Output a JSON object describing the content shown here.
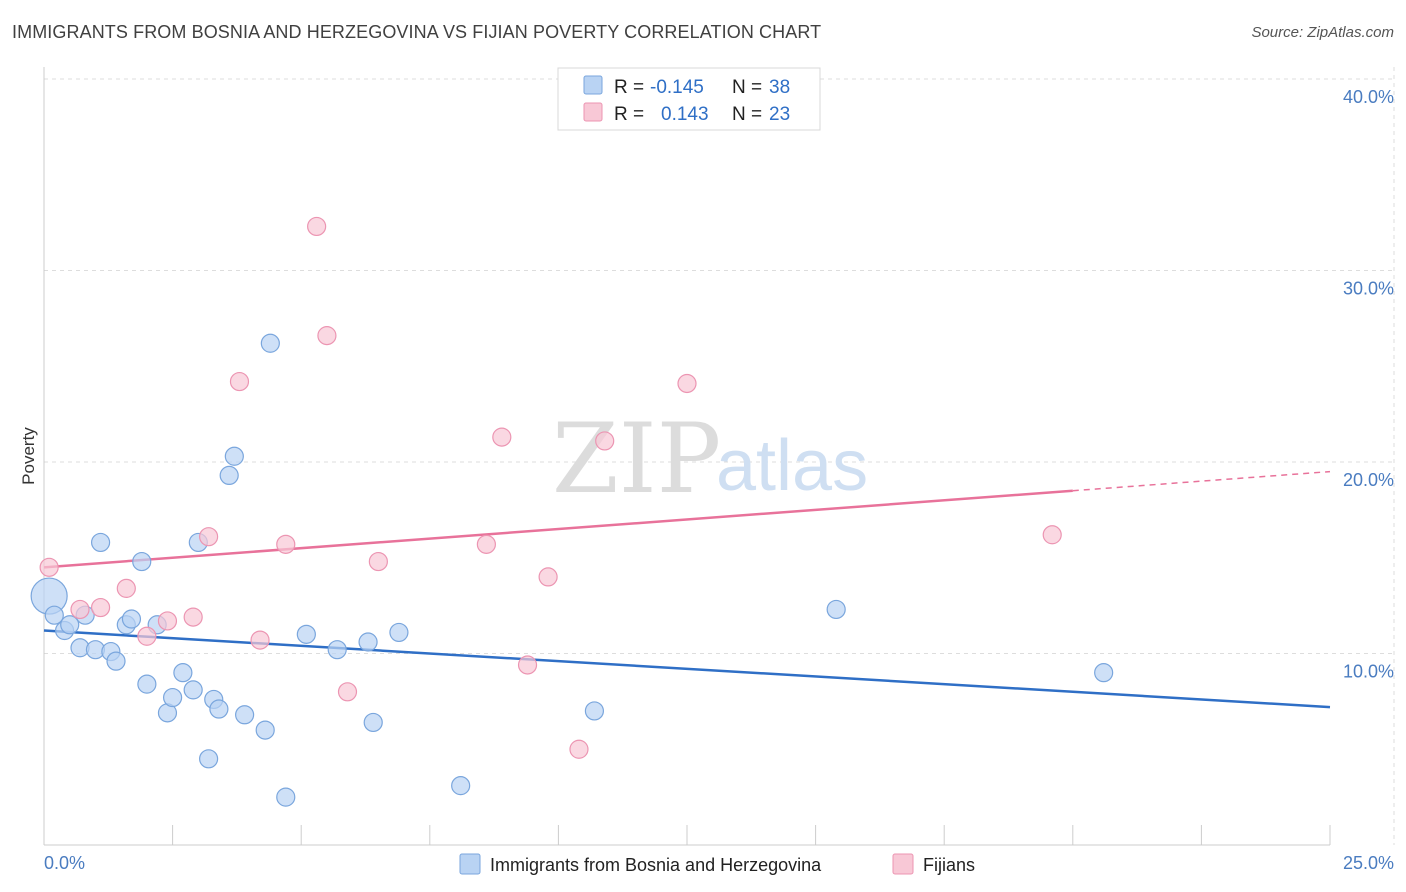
{
  "header": {
    "title": "IMMIGRANTS FROM BOSNIA AND HERZEGOVINA VS FIJIAN POVERTY CORRELATION CHART",
    "source": "Source: ZipAtlas.com"
  },
  "watermark": {
    "zip": "ZIP",
    "atlas": "atlas"
  },
  "colors": {
    "blue_fill": "#b9d3f3",
    "blue_stroke": "#7aa6dd",
    "blue_line": "#2f6fc6",
    "pink_fill": "#f8c8d6",
    "pink_stroke": "#ec95b2",
    "pink_line": "#e8729a",
    "grid": "#dddddd",
    "tick_label": "#4a7cc0"
  },
  "legend": {
    "rows": [
      {
        "r_label": "R =",
        "r_value": "-0.145",
        "n_label": "N =",
        "n_value": "38"
      },
      {
        "r_label": "R =",
        "r_value": "0.143",
        "n_label": "N =",
        "n_value": "23"
      }
    ]
  },
  "chart_data": {
    "type": "scatter",
    "title": "IMMIGRANTS FROM BOSNIA AND HERZEGOVINA VS FIJIAN POVERTY CORRELATION CHART",
    "xlabel": "",
    "ylabel": "Poverty",
    "xlim": [
      0,
      25
    ],
    "ylim": [
      0,
      40
    ],
    "x_tick_labels": [
      "0.0%",
      "25.0%"
    ],
    "y_ticks": [
      10,
      20,
      30,
      40
    ],
    "y_tick_labels": [
      "10.0%",
      "20.0%",
      "30.0%",
      "40.0%"
    ],
    "grid": true,
    "legend_position": "top-center",
    "series": [
      {
        "name": "Immigrants from Bosnia and Herzegovina",
        "color": "#b9d3f3",
        "r": -0.145,
        "n": 38,
        "trend": {
          "x": [
            0,
            25
          ],
          "y": [
            11.2,
            7.2
          ]
        },
        "points": [
          {
            "x": 0.1,
            "y": 13.0,
            "big": true
          },
          {
            "x": 0.2,
            "y": 12.0
          },
          {
            "x": 0.4,
            "y": 11.2
          },
          {
            "x": 0.5,
            "y": 11.5
          },
          {
            "x": 0.7,
            "y": 10.3
          },
          {
            "x": 0.8,
            "y": 12.0
          },
          {
            "x": 1.0,
            "y": 10.2
          },
          {
            "x": 1.1,
            "y": 15.8
          },
          {
            "x": 1.3,
            "y": 10.1
          },
          {
            "x": 1.4,
            "y": 9.6
          },
          {
            "x": 1.6,
            "y": 11.5
          },
          {
            "x": 1.7,
            "y": 11.8
          },
          {
            "x": 1.9,
            "y": 14.8
          },
          {
            "x": 2.0,
            "y": 8.4
          },
          {
            "x": 2.2,
            "y": 11.5
          },
          {
            "x": 2.4,
            "y": 6.9
          },
          {
            "x": 2.5,
            "y": 7.7
          },
          {
            "x": 2.7,
            "y": 9.0
          },
          {
            "x": 2.9,
            "y": 8.1
          },
          {
            "x": 3.0,
            "y": 15.8
          },
          {
            "x": 3.2,
            "y": 4.5
          },
          {
            "x": 3.3,
            "y": 7.6
          },
          {
            "x": 3.4,
            "y": 7.1
          },
          {
            "x": 3.6,
            "y": 19.3
          },
          {
            "x": 3.7,
            "y": 20.3
          },
          {
            "x": 3.9,
            "y": 6.8
          },
          {
            "x": 4.3,
            "y": 6.0
          },
          {
            "x": 4.4,
            "y": 26.2
          },
          {
            "x": 4.7,
            "y": 2.5
          },
          {
            "x": 5.1,
            "y": 11.0
          },
          {
            "x": 5.7,
            "y": 10.2
          },
          {
            "x": 6.3,
            "y": 10.6
          },
          {
            "x": 6.4,
            "y": 6.4
          },
          {
            "x": 6.9,
            "y": 11.1
          },
          {
            "x": 8.1,
            "y": 3.1
          },
          {
            "x": 10.7,
            "y": 7.0
          },
          {
            "x": 15.4,
            "y": 12.3
          },
          {
            "x": 20.6,
            "y": 9.0
          }
        ]
      },
      {
        "name": "Fijians",
        "color": "#f8c8d6",
        "r": 0.143,
        "n": 23,
        "trend": {
          "x": [
            0,
            20
          ],
          "y": [
            14.5,
            18.5
          ],
          "dashed_to": [
            25,
            19.5
          ]
        },
        "points": [
          {
            "x": 0.1,
            "y": 14.5
          },
          {
            "x": 0.7,
            "y": 12.3
          },
          {
            "x": 1.1,
            "y": 12.4
          },
          {
            "x": 1.6,
            "y": 13.4
          },
          {
            "x": 2.0,
            "y": 10.9
          },
          {
            "x": 2.4,
            "y": 11.7
          },
          {
            "x": 2.9,
            "y": 11.9
          },
          {
            "x": 3.2,
            "y": 16.1
          },
          {
            "x": 3.8,
            "y": 24.2
          },
          {
            "x": 4.2,
            "y": 10.7
          },
          {
            "x": 4.7,
            "y": 15.7
          },
          {
            "x": 5.3,
            "y": 32.3
          },
          {
            "x": 5.5,
            "y": 26.6
          },
          {
            "x": 5.9,
            "y": 8.0
          },
          {
            "x": 6.5,
            "y": 14.8
          },
          {
            "x": 8.6,
            "y": 15.7
          },
          {
            "x": 8.9,
            "y": 21.3
          },
          {
            "x": 9.4,
            "y": 9.4
          },
          {
            "x": 9.8,
            "y": 14.0
          },
          {
            "x": 10.4,
            "y": 5.0
          },
          {
            "x": 10.9,
            "y": 21.1
          },
          {
            "x": 12.5,
            "y": 24.1
          },
          {
            "x": 19.6,
            "y": 16.2
          }
        ]
      }
    ]
  }
}
